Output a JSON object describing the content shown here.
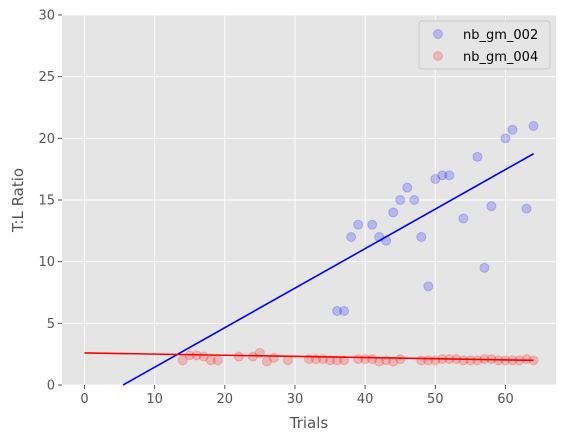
{
  "chart_data": {
    "type": "scatter",
    "xlabel": "Trials",
    "ylabel": "T:L Ratio",
    "xlim": [
      -3.2,
      67.2
    ],
    "ylim": [
      0,
      30
    ],
    "xticks": [
      0,
      10,
      20,
      30,
      40,
      50,
      60
    ],
    "yticks": [
      0,
      5,
      10,
      15,
      20,
      25,
      30
    ],
    "grid": true,
    "legend_position": "top-right",
    "series": [
      {
        "name": "nb_gm_002",
        "color": "#0000ff",
        "points": [
          [
            36,
            6
          ],
          [
            37,
            6
          ],
          [
            38,
            12
          ],
          [
            39,
            13
          ],
          [
            41,
            13
          ],
          [
            42,
            12
          ],
          [
            43,
            11.7
          ],
          [
            44,
            14
          ],
          [
            45,
            15
          ],
          [
            46,
            16
          ],
          [
            47,
            15
          ],
          [
            48,
            12
          ],
          [
            49,
            8
          ],
          [
            50,
            16.7
          ],
          [
            51,
            17
          ],
          [
            52,
            17
          ],
          [
            54,
            13.5
          ],
          [
            56,
            18.5
          ],
          [
            57,
            9.5
          ],
          [
            58,
            14.5
          ],
          [
            60,
            20
          ],
          [
            61,
            20.7
          ],
          [
            63,
            14.3
          ],
          [
            64,
            21
          ]
        ],
        "fit": {
          "x": [
            5.5,
            64
          ],
          "y": [
            0,
            18.75
          ]
        }
      },
      {
        "name": "nb_gm_004",
        "color": "#ff0000",
        "points": [
          [
            14,
            2
          ],
          [
            15,
            2.4
          ],
          [
            16,
            2.4
          ],
          [
            17,
            2.3
          ],
          [
            18,
            2
          ],
          [
            19,
            2
          ],
          [
            22,
            2.3
          ],
          [
            24,
            2.3
          ],
          [
            25,
            2.6
          ],
          [
            26,
            1.9
          ],
          [
            27,
            2.2
          ],
          [
            29,
            2
          ],
          [
            32,
            2.1
          ],
          [
            33,
            2.1
          ],
          [
            34,
            2.1
          ],
          [
            35,
            2
          ],
          [
            36,
            2
          ],
          [
            37,
            2
          ],
          [
            39,
            2.1
          ],
          [
            40,
            2.1
          ],
          [
            41,
            2.1
          ],
          [
            42,
            1.9
          ],
          [
            43,
            2
          ],
          [
            44,
            1.9
          ],
          [
            45,
            2.1
          ],
          [
            48,
            2
          ],
          [
            49,
            2
          ],
          [
            50,
            2
          ],
          [
            51,
            2.1
          ],
          [
            52,
            2.1
          ],
          [
            53,
            2.1
          ],
          [
            54,
            2
          ],
          [
            55,
            2
          ],
          [
            56,
            2
          ],
          [
            57,
            2.1
          ],
          [
            58,
            2.1
          ],
          [
            59,
            2
          ],
          [
            60,
            2
          ],
          [
            61,
            2
          ],
          [
            62,
            2
          ],
          [
            63,
            2.1
          ],
          [
            64,
            2
          ]
        ],
        "fit": {
          "x": [
            0,
            64
          ],
          "y": [
            2.6,
            2.0
          ]
        }
      }
    ]
  }
}
